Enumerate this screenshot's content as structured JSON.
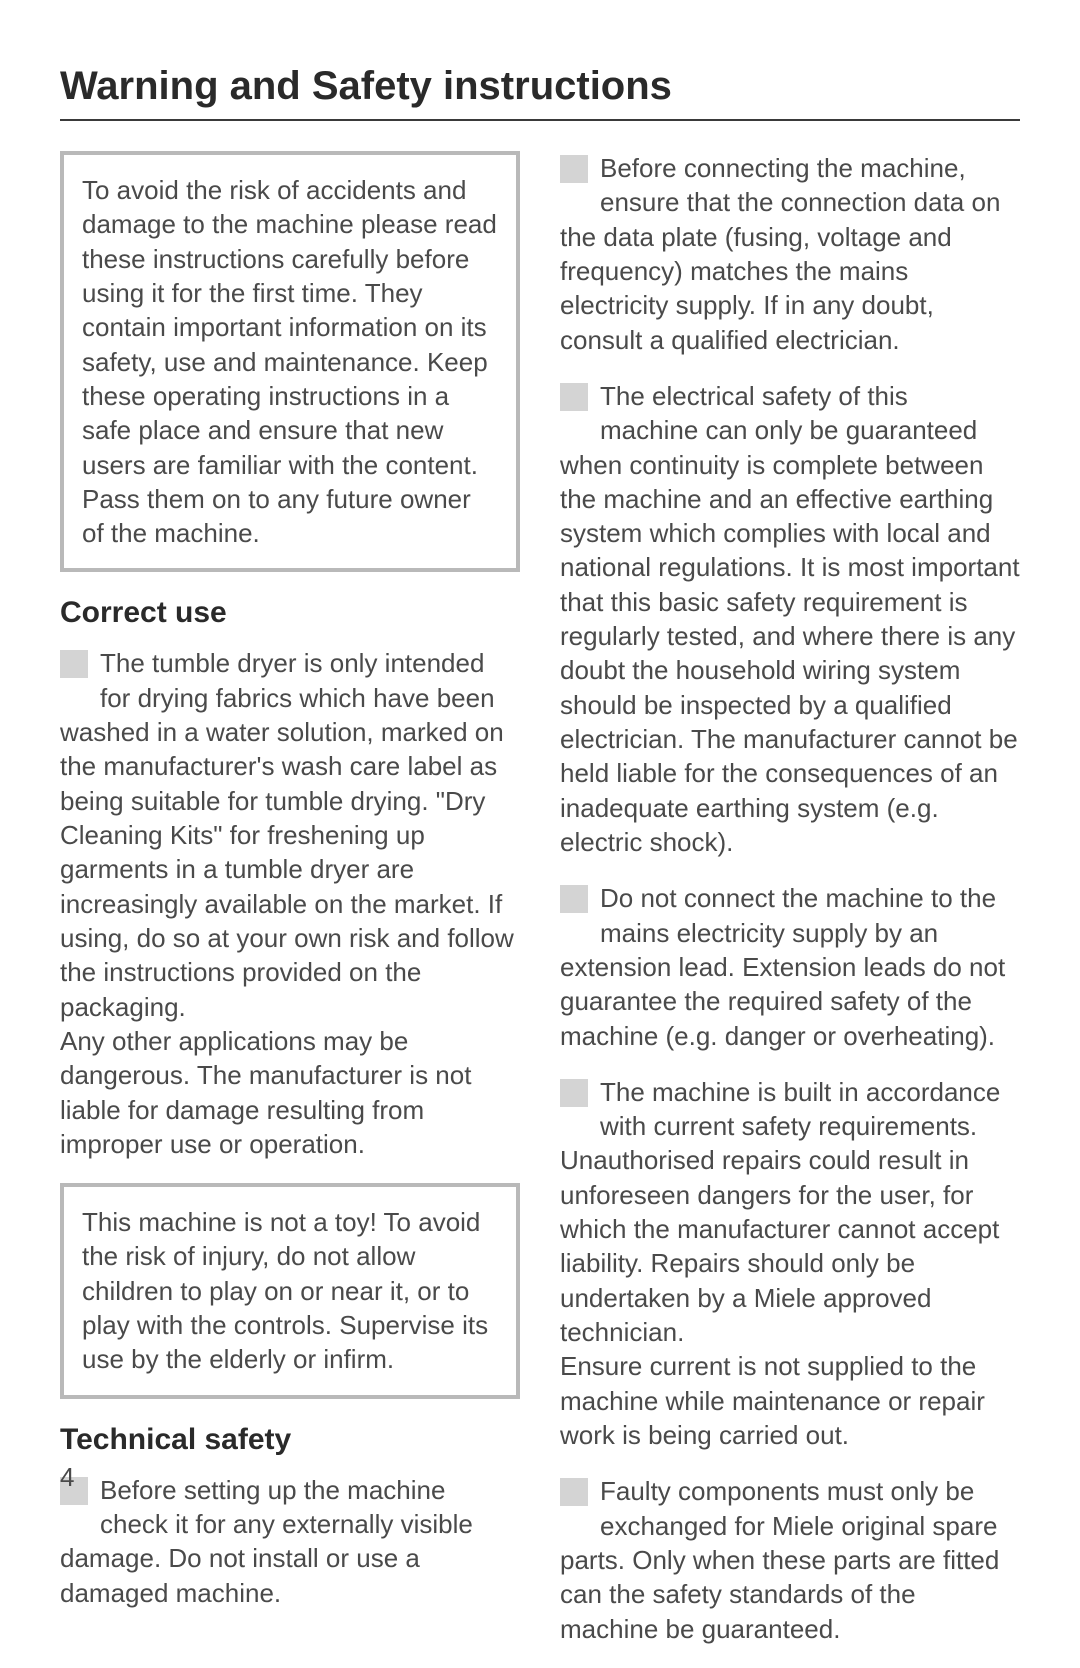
{
  "title": "Warning and Safety instructions",
  "page_number": "4",
  "left": {
    "intro_box": "To avoid the risk of accidents and damage to the machine please read these instructions carefully before using it for the first time.  They contain important information on its safety, use and maintenance. Keep these operating instructions in a safe place and ensure that new users are familiar with the content. Pass them on to any future owner of the machine.",
    "h_correct_use": "Correct use",
    "p_correct_use_lead1": "The tumble dryer is only intended",
    "p_correct_use_lead2": "for drying fabrics which have been",
    "p_correct_use_cont": "washed in a water solution, marked on the manufacturer's wash care label as being suitable for tumble drying. \"Dry Cleaning Kits\" for freshening up garments in a tumble dryer are increasingly available on the market. If using, do so at your own risk and follow the instructions provided on the packaging.",
    "p_correct_use_tail": "Any other applications may be dangerous. The manufacturer is not liable for damage resulting from improper use or operation.",
    "toy_box": "This machine is not a toy! To avoid the risk of injury, do not allow children to play on or near it, or to play with the controls. Supervise its use by the elderly or infirm.",
    "h_tech_safety": "Technical safety",
    "p_tech_lead1": "Before setting up the machine",
    "p_tech_lead2": "check it for any externally visible",
    "p_tech_cont": "damage. Do not install or use a damaged machine."
  },
  "right": {
    "p1_lead1": "Before connecting the machine,",
    "p1_lead2": "ensure that the connection data on",
    "p1_cont": "the data plate (fusing, voltage and frequency) matches the mains electricity supply. If in any doubt, consult a qualified electrician.",
    "p2_lead1": "The electrical safety of this",
    "p2_lead2": "machine can only be guaranteed",
    "p2_cont": "when continuity is complete between the machine and an effective earthing system which complies with local and national regulations. It is most important that this basic safety requirement is regularly tested, and where there is any doubt the household wiring system should be inspected by a qualified electrician. The manufacturer cannot be held liable for the consequences of an inadequate earthing system (e.g. electric shock).",
    "p3_lead1": "Do not connect the machine to the",
    "p3_lead2": "mains electricity supply by an",
    "p3_cont": "extension lead. Extension leads do not guarantee the required safety of the machine (e.g. danger or overheating).",
    "p4_lead1": "The machine is built in accordance",
    "p4_lead2": "with current safety requirements.",
    "p4_cont": "Unauthorised repairs could result in unforeseen dangers for the user, for which the manufacturer cannot accept liability. Repairs should only be undertaken by a Miele approved technician.",
    "p4_tail": "Ensure current is not supplied to the machine while maintenance or repair work is being carried out.",
    "p5_lead1": "Faulty components must only be",
    "p5_lead2": "exchanged for Miele original spare",
    "p5_cont": "parts. Only when these parts are fitted can the safety standards of the machine be guaranteed."
  }
}
